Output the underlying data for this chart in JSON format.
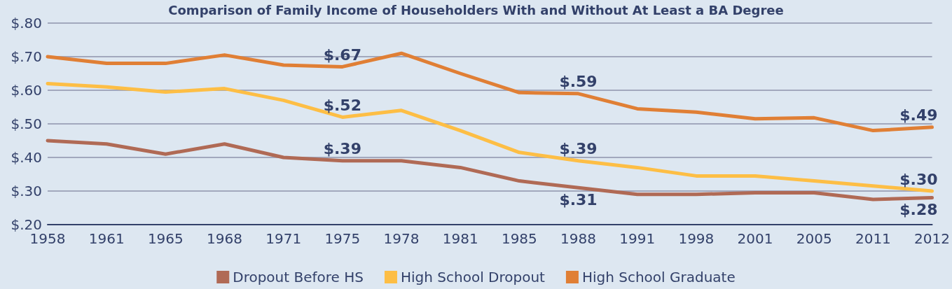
{
  "chart_data": {
    "type": "line",
    "title": "Comparison of Family Income of Householders With and Without At Least a BA Degree",
    "categories": [
      "1958",
      "1961",
      "1965",
      "1968",
      "1971",
      "1975",
      "1978",
      "1981",
      "1985",
      "1988",
      "1991",
      "1998",
      "2001",
      "2005",
      "2011",
      "2012"
    ],
    "series": [
      {
        "name": "Dropout Before HS",
        "color": "#b06a55",
        "values": [
          0.45,
          0.44,
          0.41,
          0.44,
          0.4,
          0.39,
          0.39,
          0.37,
          0.33,
          0.31,
          0.29,
          0.29,
          0.295,
          0.295,
          0.275,
          0.28
        ],
        "value_labels": [
          null,
          null,
          null,
          null,
          null,
          "$.39",
          null,
          null,
          null,
          "$.31",
          null,
          null,
          null,
          null,
          null,
          "$.28"
        ]
      },
      {
        "name": "High School Dropout",
        "color": "#fdbe45",
        "values": [
          0.62,
          0.61,
          0.595,
          0.605,
          0.57,
          0.52,
          0.54,
          0.48,
          0.415,
          0.39,
          0.37,
          0.345,
          0.345,
          0.33,
          0.315,
          0.3
        ],
        "value_labels": [
          null,
          null,
          null,
          null,
          null,
          "$.52",
          null,
          null,
          null,
          "$.39",
          null,
          null,
          null,
          null,
          null,
          "$.30"
        ]
      },
      {
        "name": "High School Graduate",
        "color": "#e07f35",
        "values": [
          0.7,
          0.68,
          0.68,
          0.705,
          0.675,
          0.67,
          0.71,
          0.65,
          0.593,
          0.59,
          0.545,
          0.535,
          0.515,
          0.518,
          0.48,
          0.49
        ],
        "value_labels": [
          null,
          null,
          null,
          null,
          null,
          "$.67",
          null,
          null,
          null,
          "$.59",
          null,
          null,
          null,
          null,
          null,
          "$.49"
        ]
      }
    ],
    "ylim": [
      0.2,
      0.8
    ],
    "yticks": [
      {
        "value": 0.2,
        "label": "$.20"
      },
      {
        "value": 0.3,
        "label": "$.30"
      },
      {
        "value": 0.4,
        "label": "$.40"
      },
      {
        "value": 0.5,
        "label": "$.50"
      },
      {
        "value": 0.6,
        "label": "$.60"
      },
      {
        "value": 0.7,
        "label": "$.70"
      },
      {
        "value": 0.8,
        "label": "$.80"
      }
    ],
    "grid": "y",
    "legend": "bottom",
    "marker": "none",
    "line_style": "solid"
  }
}
